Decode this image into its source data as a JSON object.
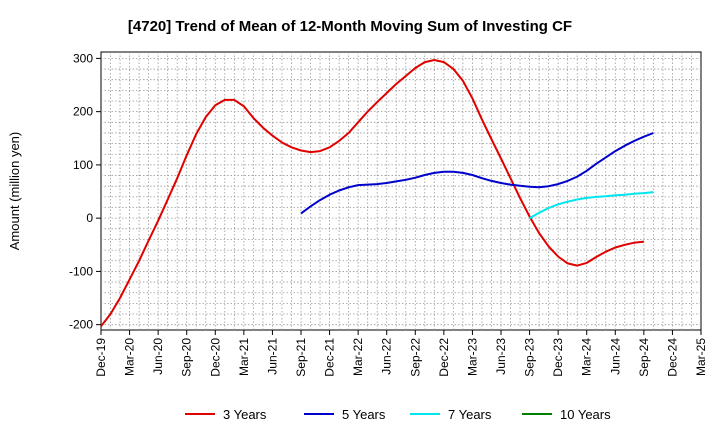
{
  "chart_data": {
    "type": "line",
    "title": "[4720]  Trend of Mean of 12-Month Moving Sum of Investing CF",
    "ylabel": "Amount (million yen)",
    "xlabel": "",
    "ylim": [
      -210,
      312
    ],
    "yticks": [
      300,
      200,
      100,
      0,
      -100,
      -200
    ],
    "x_range": [
      "2019-12",
      "2025-03"
    ],
    "x_ticks": [
      "Dec-19",
      "Mar-20",
      "Jun-20",
      "Sep-20",
      "Dec-20",
      "Mar-21",
      "Jun-21",
      "Sep-21",
      "Dec-21",
      "Mar-22",
      "Jun-22",
      "Sep-22",
      "Dec-22",
      "Mar-23",
      "Jun-23",
      "Sep-23",
      "Dec-23",
      "Mar-24",
      "Jun-24",
      "Sep-24",
      "Dec-24",
      "Mar-25"
    ],
    "grid": true,
    "legend_position": "bottom",
    "series": [
      {
        "name": "3 Years",
        "color": "#e00000",
        "points": [
          [
            "2019-12",
            -203
          ],
          [
            "2020-01",
            -180
          ],
          [
            "2020-02",
            -150
          ],
          [
            "2020-03",
            -115
          ],
          [
            "2020-04",
            -80
          ],
          [
            "2020-05",
            -42
          ],
          [
            "2020-06",
            -5
          ],
          [
            "2020-07",
            35
          ],
          [
            "2020-08",
            75
          ],
          [
            "2020-09",
            118
          ],
          [
            "2020-10",
            158
          ],
          [
            "2020-11",
            190
          ],
          [
            "2020-12",
            212
          ],
          [
            "2021-01",
            222
          ],
          [
            "2021-02",
            222
          ],
          [
            "2021-03",
            210
          ],
          [
            "2021-04",
            188
          ],
          [
            "2021-05",
            170
          ],
          [
            "2021-06",
            155
          ],
          [
            "2021-07",
            142
          ],
          [
            "2021-08",
            133
          ],
          [
            "2021-09",
            127
          ],
          [
            "2021-10",
            124
          ],
          [
            "2021-11",
            126
          ],
          [
            "2021-12",
            133
          ],
          [
            "2022-01",
            145
          ],
          [
            "2022-02",
            160
          ],
          [
            "2022-03",
            180
          ],
          [
            "2022-04",
            200
          ],
          [
            "2022-05",
            218
          ],
          [
            "2022-06",
            235
          ],
          [
            "2022-07",
            252
          ],
          [
            "2022-08",
            267
          ],
          [
            "2022-09",
            282
          ],
          [
            "2022-10",
            293
          ],
          [
            "2022-11",
            297
          ],
          [
            "2022-12",
            293
          ],
          [
            "2023-01",
            280
          ],
          [
            "2023-02",
            258
          ],
          [
            "2023-03",
            225
          ],
          [
            "2023-04",
            185
          ],
          [
            "2023-05",
            148
          ],
          [
            "2023-06",
            112
          ],
          [
            "2023-07",
            75
          ],
          [
            "2023-08",
            38
          ],
          [
            "2023-09",
            3
          ],
          [
            "2023-10",
            -28
          ],
          [
            "2023-11",
            -53
          ],
          [
            "2023-12",
            -72
          ],
          [
            "2024-01",
            -85
          ],
          [
            "2024-02",
            -89
          ],
          [
            "2024-03",
            -84
          ],
          [
            "2024-04",
            -73
          ],
          [
            "2024-05",
            -63
          ],
          [
            "2024-06",
            -55
          ],
          [
            "2024-07",
            -50
          ],
          [
            "2024-08",
            -46
          ],
          [
            "2024-09",
            -44
          ]
        ]
      },
      {
        "name": "5 Years",
        "color": "#0000cc",
        "points": [
          [
            "2021-09",
            9
          ],
          [
            "2021-10",
            22
          ],
          [
            "2021-11",
            34
          ],
          [
            "2021-12",
            44
          ],
          [
            "2022-01",
            52
          ],
          [
            "2022-02",
            58
          ],
          [
            "2022-03",
            62
          ],
          [
            "2022-04",
            63
          ],
          [
            "2022-05",
            64
          ],
          [
            "2022-06",
            66
          ],
          [
            "2022-07",
            69
          ],
          [
            "2022-08",
            72
          ],
          [
            "2022-09",
            76
          ],
          [
            "2022-10",
            81
          ],
          [
            "2022-11",
            85
          ],
          [
            "2022-12",
            87
          ],
          [
            "2023-01",
            87
          ],
          [
            "2023-02",
            85
          ],
          [
            "2023-03",
            81
          ],
          [
            "2023-04",
            75
          ],
          [
            "2023-05",
            70
          ],
          [
            "2023-06",
            66
          ],
          [
            "2023-07",
            63
          ],
          [
            "2023-08",
            61
          ],
          [
            "2023-09",
            59
          ],
          [
            "2023-10",
            58
          ],
          [
            "2023-11",
            60
          ],
          [
            "2023-12",
            64
          ],
          [
            "2024-01",
            70
          ],
          [
            "2024-02",
            78
          ],
          [
            "2024-03",
            89
          ],
          [
            "2024-04",
            102
          ],
          [
            "2024-05",
            114
          ],
          [
            "2024-06",
            126
          ],
          [
            "2024-07",
            136
          ],
          [
            "2024-08",
            145
          ],
          [
            "2024-09",
            153
          ],
          [
            "2024-10",
            160
          ]
        ]
      },
      {
        "name": "7 Years",
        "color": "#00e5ee",
        "points": [
          [
            "2023-09",
            0
          ],
          [
            "2023-10",
            10
          ],
          [
            "2023-11",
            19
          ],
          [
            "2023-12",
            26
          ],
          [
            "2024-01",
            31
          ],
          [
            "2024-02",
            35
          ],
          [
            "2024-03",
            38
          ],
          [
            "2024-04",
            40
          ],
          [
            "2024-05",
            41
          ],
          [
            "2024-06",
            43
          ],
          [
            "2024-07",
            44
          ],
          [
            "2024-08",
            46
          ],
          [
            "2024-09",
            47
          ],
          [
            "2024-10",
            49
          ]
        ]
      },
      {
        "name": "10 Years",
        "color": "#008000",
        "points": []
      }
    ]
  }
}
